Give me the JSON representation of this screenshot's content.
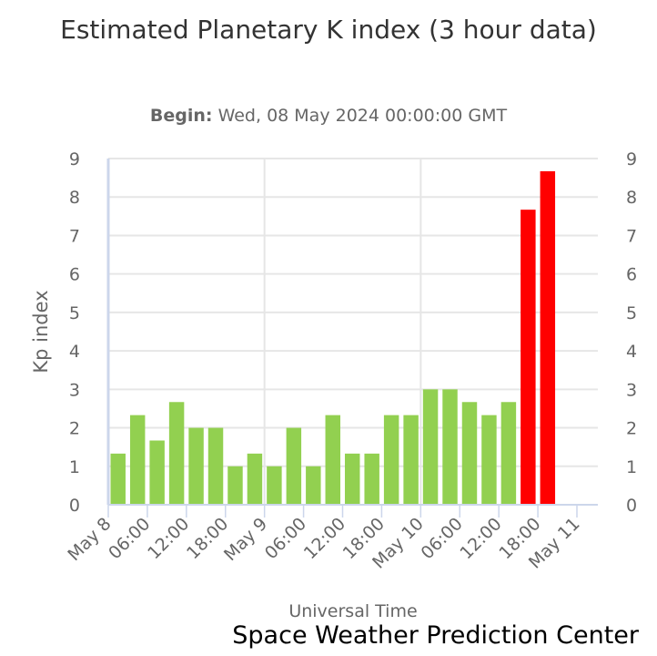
{
  "chart_data": {
    "type": "bar",
    "title": "Estimated Planetary K index (3 hour data)",
    "subtitle_label": "Begin:",
    "subtitle_value": "Wed, 08 May 2024 00:00:00 GMT",
    "xlabel": "Universal Time",
    "ylabel": "Kp index",
    "ylim": [
      0,
      9
    ],
    "yticks": [
      0,
      1,
      2,
      3,
      4,
      5,
      6,
      7,
      8,
      9
    ],
    "xtick_labels": [
      "May 8",
      "06:00",
      "12:00",
      "18:00",
      "May 9",
      "06:00",
      "12:00",
      "18:00",
      "May 10",
      "06:00",
      "12:00",
      "18:00",
      "May 11"
    ],
    "categories": [
      "May 8 00:00",
      "May 8 03:00",
      "May 8 06:00",
      "May 8 09:00",
      "May 8 12:00",
      "May 8 15:00",
      "May 8 18:00",
      "May 8 21:00",
      "May 9 00:00",
      "May 9 03:00",
      "May 9 06:00",
      "May 9 09:00",
      "May 9 12:00",
      "May 9 15:00",
      "May 9 18:00",
      "May 9 21:00",
      "May 10 00:00",
      "May 10 03:00",
      "May 10 06:00",
      "May 10 09:00",
      "May 10 12:00",
      "May 10 15:00",
      "May 10 18:00"
    ],
    "values": [
      1.33,
      2.33,
      1.67,
      2.67,
      2,
      2,
      1,
      1.33,
      1,
      2,
      1,
      2.33,
      1.33,
      1.33,
      2.33,
      2.33,
      3,
      3,
      2.67,
      2.33,
      2.67,
      7.67,
      8.67
    ],
    "colors": {
      "normal": "#92d050",
      "storm": "#ff0000"
    },
    "grid": true
  },
  "credit": "Space Weather Prediction Center"
}
